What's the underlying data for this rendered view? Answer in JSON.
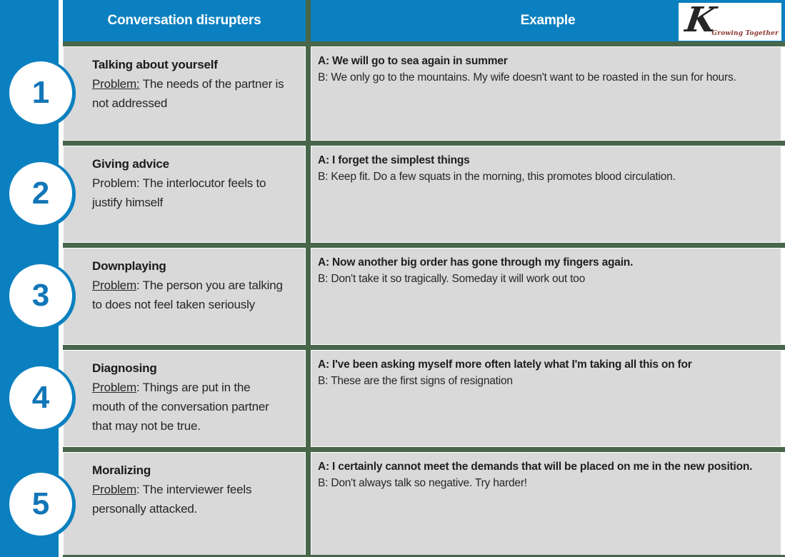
{
  "header": {
    "col1": "Conversation disrupters",
    "col2": "Example"
  },
  "logo": {
    "letter": "K",
    "tagline": "Growing Together"
  },
  "colors": {
    "accent_blue": "#0b80c0",
    "border_green": "#48664a",
    "cell_gray": "#d9d9d9",
    "logo_red": "#8b3630",
    "number_blue": "#1276b8"
  },
  "rows": [
    {
      "number": "1",
      "title": "Talking about yourself",
      "problem_label": "Problem:",
      "problem_underline": true,
      "problem_rest": " The needs of the partner is not addressed",
      "example_a": "A: We will go to sea again in summer",
      "example_b": "B: We only go to the mountains. My wife doesn't want to be roasted in the sun for hours."
    },
    {
      "number": "2",
      "title": "Giving advice",
      "problem_label": "Problem:",
      "problem_underline": false,
      "problem_rest": " The interlocutor feels to justify himself",
      "example_a": "A: I forget the simplest things",
      "example_b": "B: Keep fit. Do a few squats in the morning, this promotes blood circulation."
    },
    {
      "number": "3",
      "title": "Downplaying",
      "problem_label": "Problem",
      "problem_underline": true,
      "problem_rest": ": The person you are talking to does not feel taken seriously",
      "example_a": "A: Now another big order has gone through my fingers again.",
      "example_b": "B: Don't take it so tragically. Someday it will work out too"
    },
    {
      "number": "4",
      "title": "Diagnosing",
      "problem_label": "Problem",
      "problem_underline": true,
      "problem_rest": ": Things are put in the mouth of the conversation partner that may not be true.",
      "example_a": "A: I've been asking myself more often lately what I'm taking all this on for",
      "example_b": "B: These are the first signs of resignation"
    },
    {
      "number": "5",
      "title": "Moralizing",
      "problem_label": "Problem",
      "problem_underline": true,
      "problem_rest": ": The interviewer feels personally attacked.",
      "example_a": "A: I certainly cannot meet the demands that will be placed on me in the new position.",
      "example_b": "B: Don't always talk so negative. Try harder!"
    }
  ]
}
